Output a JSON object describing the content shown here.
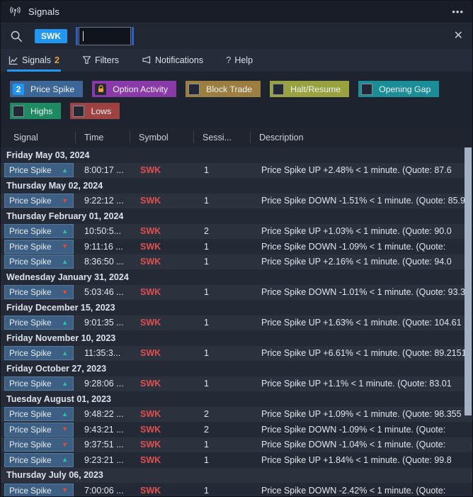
{
  "window": {
    "title": "Signals"
  },
  "icons": {
    "ellipsis": "•••",
    "close": "✕",
    "help": "?",
    "up_arrow": "▲",
    "down_arrow": "▼"
  },
  "colors": {
    "accent": "#2196f3",
    "symbol_red": "#e05050",
    "spike_up": "#2ec4a5",
    "spike_down": "#f04a2e",
    "badge_bg": "#3d5f83"
  },
  "search": {
    "chip": "SWK",
    "input_value": ""
  },
  "tabs": [
    {
      "label": "Signals",
      "badge": "2",
      "icon": "chart-line-icon",
      "active": true
    },
    {
      "label": "Filters",
      "icon": "funnel-icon",
      "active": false
    },
    {
      "label": "Notifications",
      "icon": "megaphone-icon",
      "active": false
    },
    {
      "label": "Help",
      "icon": "question-icon",
      "active": false
    }
  ],
  "filters": [
    {
      "label": "Price Spike",
      "badge": "2",
      "color": "#3c6695",
      "control": "badge"
    },
    {
      "label": "Option Activity",
      "color": "#8a3aa8",
      "control": "lock"
    },
    {
      "label": "Block Trade",
      "color": "#9c7f40",
      "control": "checkbox"
    },
    {
      "label": "Halt/Resume",
      "color": "#99a23e",
      "control": "checkbox"
    },
    {
      "label": "Opening Gap",
      "color": "#1b8d97",
      "control": "checkbox"
    },
    {
      "label": "Highs",
      "color": "#1e8a61",
      "control": "checkbox"
    },
    {
      "label": "Lows",
      "color": "#9e4242",
      "control": "checkbox"
    }
  ],
  "table": {
    "columns": [
      "Signal",
      "Time",
      "Symbol",
      "Sessi...",
      "Description"
    ],
    "groups": [
      {
        "date": "Friday May 03, 2024",
        "rows": [
          {
            "signal": "Price Spike",
            "direction": "up",
            "time": "8:00:17 ...",
            "symbol": "SWK",
            "session": "1",
            "description": "Price Spike UP +2.48% < 1 minute. (Quote: 87.6"
          }
        ]
      },
      {
        "date": "Thursday May 02, 2024",
        "rows": [
          {
            "signal": "Price Spike",
            "direction": "down",
            "time": "9:22:12 ...",
            "symbol": "SWK",
            "session": "1",
            "description": "Price Spike DOWN -1.51% < 1 minute. (Quote: 85.9"
          }
        ]
      },
      {
        "date": "Thursday February 01, 2024",
        "rows": [
          {
            "signal": "Price Spike",
            "direction": "up",
            "time": "10:50:5...",
            "symbol": "SWK",
            "session": "2",
            "description": "Price Spike UP +1.03% < 1 minute. (Quote: 90.0"
          },
          {
            "signal": "Price Spike",
            "direction": "down",
            "time": "9:11:16 ...",
            "symbol": "SWK",
            "session": "1",
            "description": "Price Spike DOWN -1.09% < 1 minute. (Quote:"
          },
          {
            "signal": "Price Spike",
            "direction": "up",
            "time": "8:36:50 ...",
            "symbol": "SWK",
            "session": "1",
            "description": "Price Spike UP +2.16% < 1 minute. (Quote: 94.0"
          }
        ]
      },
      {
        "date": "Wednesday January 31, 2024",
        "rows": [
          {
            "signal": "Price Spike",
            "direction": "down",
            "time": "5:03:46 ...",
            "symbol": "SWK",
            "session": "1",
            "description": "Price Spike DOWN -1.01% < 1 minute. (Quote: 93.3"
          }
        ]
      },
      {
        "date": "Friday December 15, 2023",
        "rows": [
          {
            "signal": "Price Spike",
            "direction": "up",
            "time": "9:01:35 ...",
            "symbol": "SWK",
            "session": "1",
            "description": "Price Spike UP +1.63% < 1 minute. (Quote: 104.61"
          }
        ]
      },
      {
        "date": "Friday November 10, 2023",
        "rows": [
          {
            "signal": "Price Spike",
            "direction": "up",
            "time": "11:35:3...",
            "symbol": "SWK",
            "session": "1",
            "description": "Price Spike UP +6.61% < 1 minute. (Quote: 89.2151"
          }
        ]
      },
      {
        "date": "Friday October 27, 2023",
        "rows": [
          {
            "signal": "Price Spike",
            "direction": "up",
            "time": "9:28:06 ...",
            "symbol": "SWK",
            "session": "1",
            "description": "Price Spike UP +1.1% < 1 minute. (Quote: 83.01"
          }
        ]
      },
      {
        "date": "Tuesday August 01, 2023",
        "rows": [
          {
            "signal": "Price Spike",
            "direction": "up",
            "time": "9:48:22 ...",
            "symbol": "SWK",
            "session": "2",
            "description": "Price Spike UP +1.09% < 1 minute. (Quote: 98.355"
          },
          {
            "signal": "Price Spike",
            "direction": "down",
            "time": "9:43:21 ...",
            "symbol": "SWK",
            "session": "2",
            "description": "Price Spike DOWN -1.09% < 1 minute. (Quote:"
          },
          {
            "signal": "Price Spike",
            "direction": "down",
            "time": "9:37:51 ...",
            "symbol": "SWK",
            "session": "1",
            "description": "Price Spike DOWN -1.04% < 1 minute. (Quote:"
          },
          {
            "signal": "Price Spike",
            "direction": "up",
            "time": "9:23:21 ...",
            "symbol": "SWK",
            "session": "1",
            "description": "Price Spike UP +1.84% < 1 minute. (Quote: 99.8"
          }
        ]
      },
      {
        "date": "Thursday July 06, 2023",
        "rows": [
          {
            "signal": "Price Spike",
            "direction": "down",
            "time": "7:00:06 ...",
            "symbol": "SWK",
            "session": "1",
            "description": "Price Spike DOWN -2.42% < 1 minute. (Quote:"
          }
        ]
      }
    ]
  }
}
